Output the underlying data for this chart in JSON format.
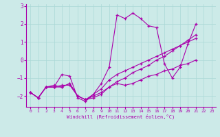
{
  "xlabel": "Windchill (Refroidissement éolien,°C)",
  "background_color": "#cceae8",
  "grid_color": "#aad8d6",
  "line_color": "#aa00aa",
  "ylim": [
    -2.6,
    3.1
  ],
  "xlim": [
    -0.5,
    23.5
  ],
  "yticks": [
    -2,
    -1,
    0,
    1,
    2,
    3
  ],
  "xticks": [
    0,
    1,
    2,
    3,
    4,
    5,
    6,
    7,
    8,
    9,
    10,
    11,
    12,
    13,
    14,
    15,
    16,
    17,
    18,
    19,
    20,
    21,
    22,
    23
  ],
  "line1_x": [
    0,
    1,
    2,
    3,
    4,
    5,
    6,
    7,
    8,
    9,
    10,
    11,
    12,
    13,
    14,
    15,
    16,
    17,
    18,
    19,
    20,
    21
  ],
  "line1_y": [
    -1.8,
    -2.1,
    -1.5,
    -1.5,
    -0.8,
    -0.9,
    -2.1,
    -2.3,
    -1.9,
    -1.3,
    -0.4,
    2.5,
    2.3,
    2.6,
    2.3,
    1.9,
    1.8,
    -0.2,
    -1.0,
    -0.4,
    0.9,
    2.0
  ],
  "line2_x": [
    0,
    1,
    2,
    3,
    4,
    5,
    6,
    7,
    8,
    9,
    10,
    11,
    12,
    13,
    14,
    15,
    16,
    17,
    18,
    19,
    20,
    21
  ],
  "line2_y": [
    -1.8,
    -2.1,
    -1.5,
    -1.5,
    -1.5,
    -1.3,
    -2.0,
    -2.2,
    -2.1,
    -1.9,
    -1.5,
    -1.3,
    -1.4,
    -1.3,
    -1.1,
    -0.9,
    -0.8,
    -0.6,
    -0.5,
    -0.3,
    -0.2,
    0.0
  ],
  "line3_x": [
    0,
    1,
    2,
    3,
    4,
    5,
    6,
    7,
    8,
    9,
    10,
    11,
    12,
    13,
    14,
    15,
    16,
    17,
    18,
    19,
    20,
    21
  ],
  "line3_y": [
    -1.8,
    -2.1,
    -1.5,
    -1.4,
    -1.5,
    -1.3,
    -2.0,
    -2.2,
    -1.9,
    -1.6,
    -1.1,
    -0.8,
    -0.6,
    -0.4,
    -0.2,
    0.0,
    0.2,
    0.4,
    0.6,
    0.8,
    1.0,
    1.2
  ],
  "line4_x": [
    0,
    1,
    2,
    3,
    4,
    5,
    6,
    7,
    8,
    9,
    10,
    11,
    12,
    13,
    14,
    15,
    16,
    17,
    18,
    19,
    20,
    21
  ],
  "line4_y": [
    -1.8,
    -2.1,
    -1.5,
    -1.5,
    -1.4,
    -1.4,
    -2.0,
    -2.2,
    -2.0,
    -1.8,
    -1.5,
    -1.2,
    -1.0,
    -0.7,
    -0.5,
    -0.3,
    -0.0,
    0.2,
    0.5,
    0.8,
    1.1,
    1.4
  ]
}
